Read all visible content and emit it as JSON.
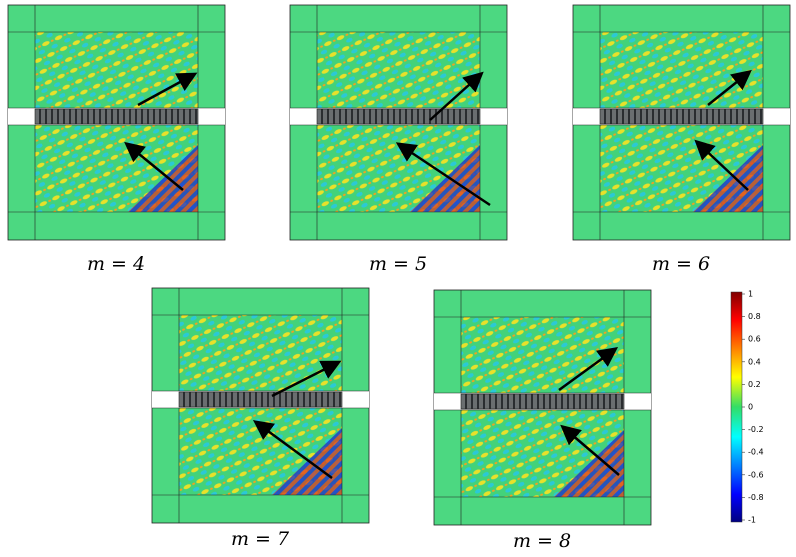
{
  "panels": [
    {
      "label": "m = 4"
    },
    {
      "label": "m = 5"
    },
    {
      "label": "m = 6"
    },
    {
      "label": "m = 7"
    },
    {
      "label": "m = 8"
    }
  ],
  "colorbar": {
    "range": [
      -1,
      1
    ],
    "ticks": [
      1,
      0.8,
      0.6,
      0.4,
      0.2,
      0,
      -0.2,
      -0.4,
      -0.6,
      -0.8,
      -1
    ]
  }
}
